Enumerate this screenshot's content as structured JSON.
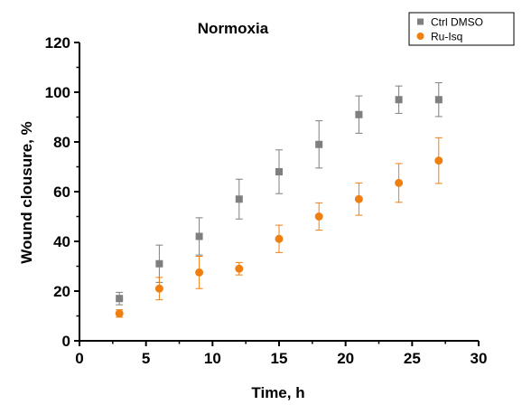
{
  "chart_data": {
    "type": "scatter",
    "title": "Normoxia",
    "xlabel": "Time, h",
    "ylabel": "Wound clousure, %",
    "xlim": [
      0,
      30
    ],
    "ylim": [
      0,
      120
    ],
    "xticks": [
      "0",
      "5",
      "10",
      "15",
      "20",
      "25",
      "30"
    ],
    "yticks": [
      "0",
      "20",
      "40",
      "60",
      "80",
      "100",
      "120"
    ],
    "grid": false,
    "legend_position": "top-right",
    "series": [
      {
        "name": "Ctrl DMSO",
        "color": "#7f7f7f",
        "marker": "square",
        "x": [
          3,
          6,
          9,
          12,
          15,
          18,
          21,
          24,
          27
        ],
        "y": [
          17,
          31,
          42,
          57,
          68,
          79,
          91,
          97,
          97
        ],
        "err": [
          2.5,
          7.5,
          7.5,
          8,
          8.8,
          9.5,
          7.5,
          5.5,
          6.8
        ]
      },
      {
        "name": "Ru-Isq",
        "color": "#f07f12",
        "marker": "circle",
        "x": [
          3,
          6,
          9,
          12,
          15,
          18,
          21,
          24,
          27
        ],
        "y": [
          11,
          21,
          27.5,
          29,
          41,
          50,
          57,
          63.5,
          72.5
        ],
        "err": [
          1.5,
          4.5,
          6.5,
          2.5,
          5.5,
          5.5,
          6.5,
          7.8,
          9.2
        ]
      }
    ]
  }
}
